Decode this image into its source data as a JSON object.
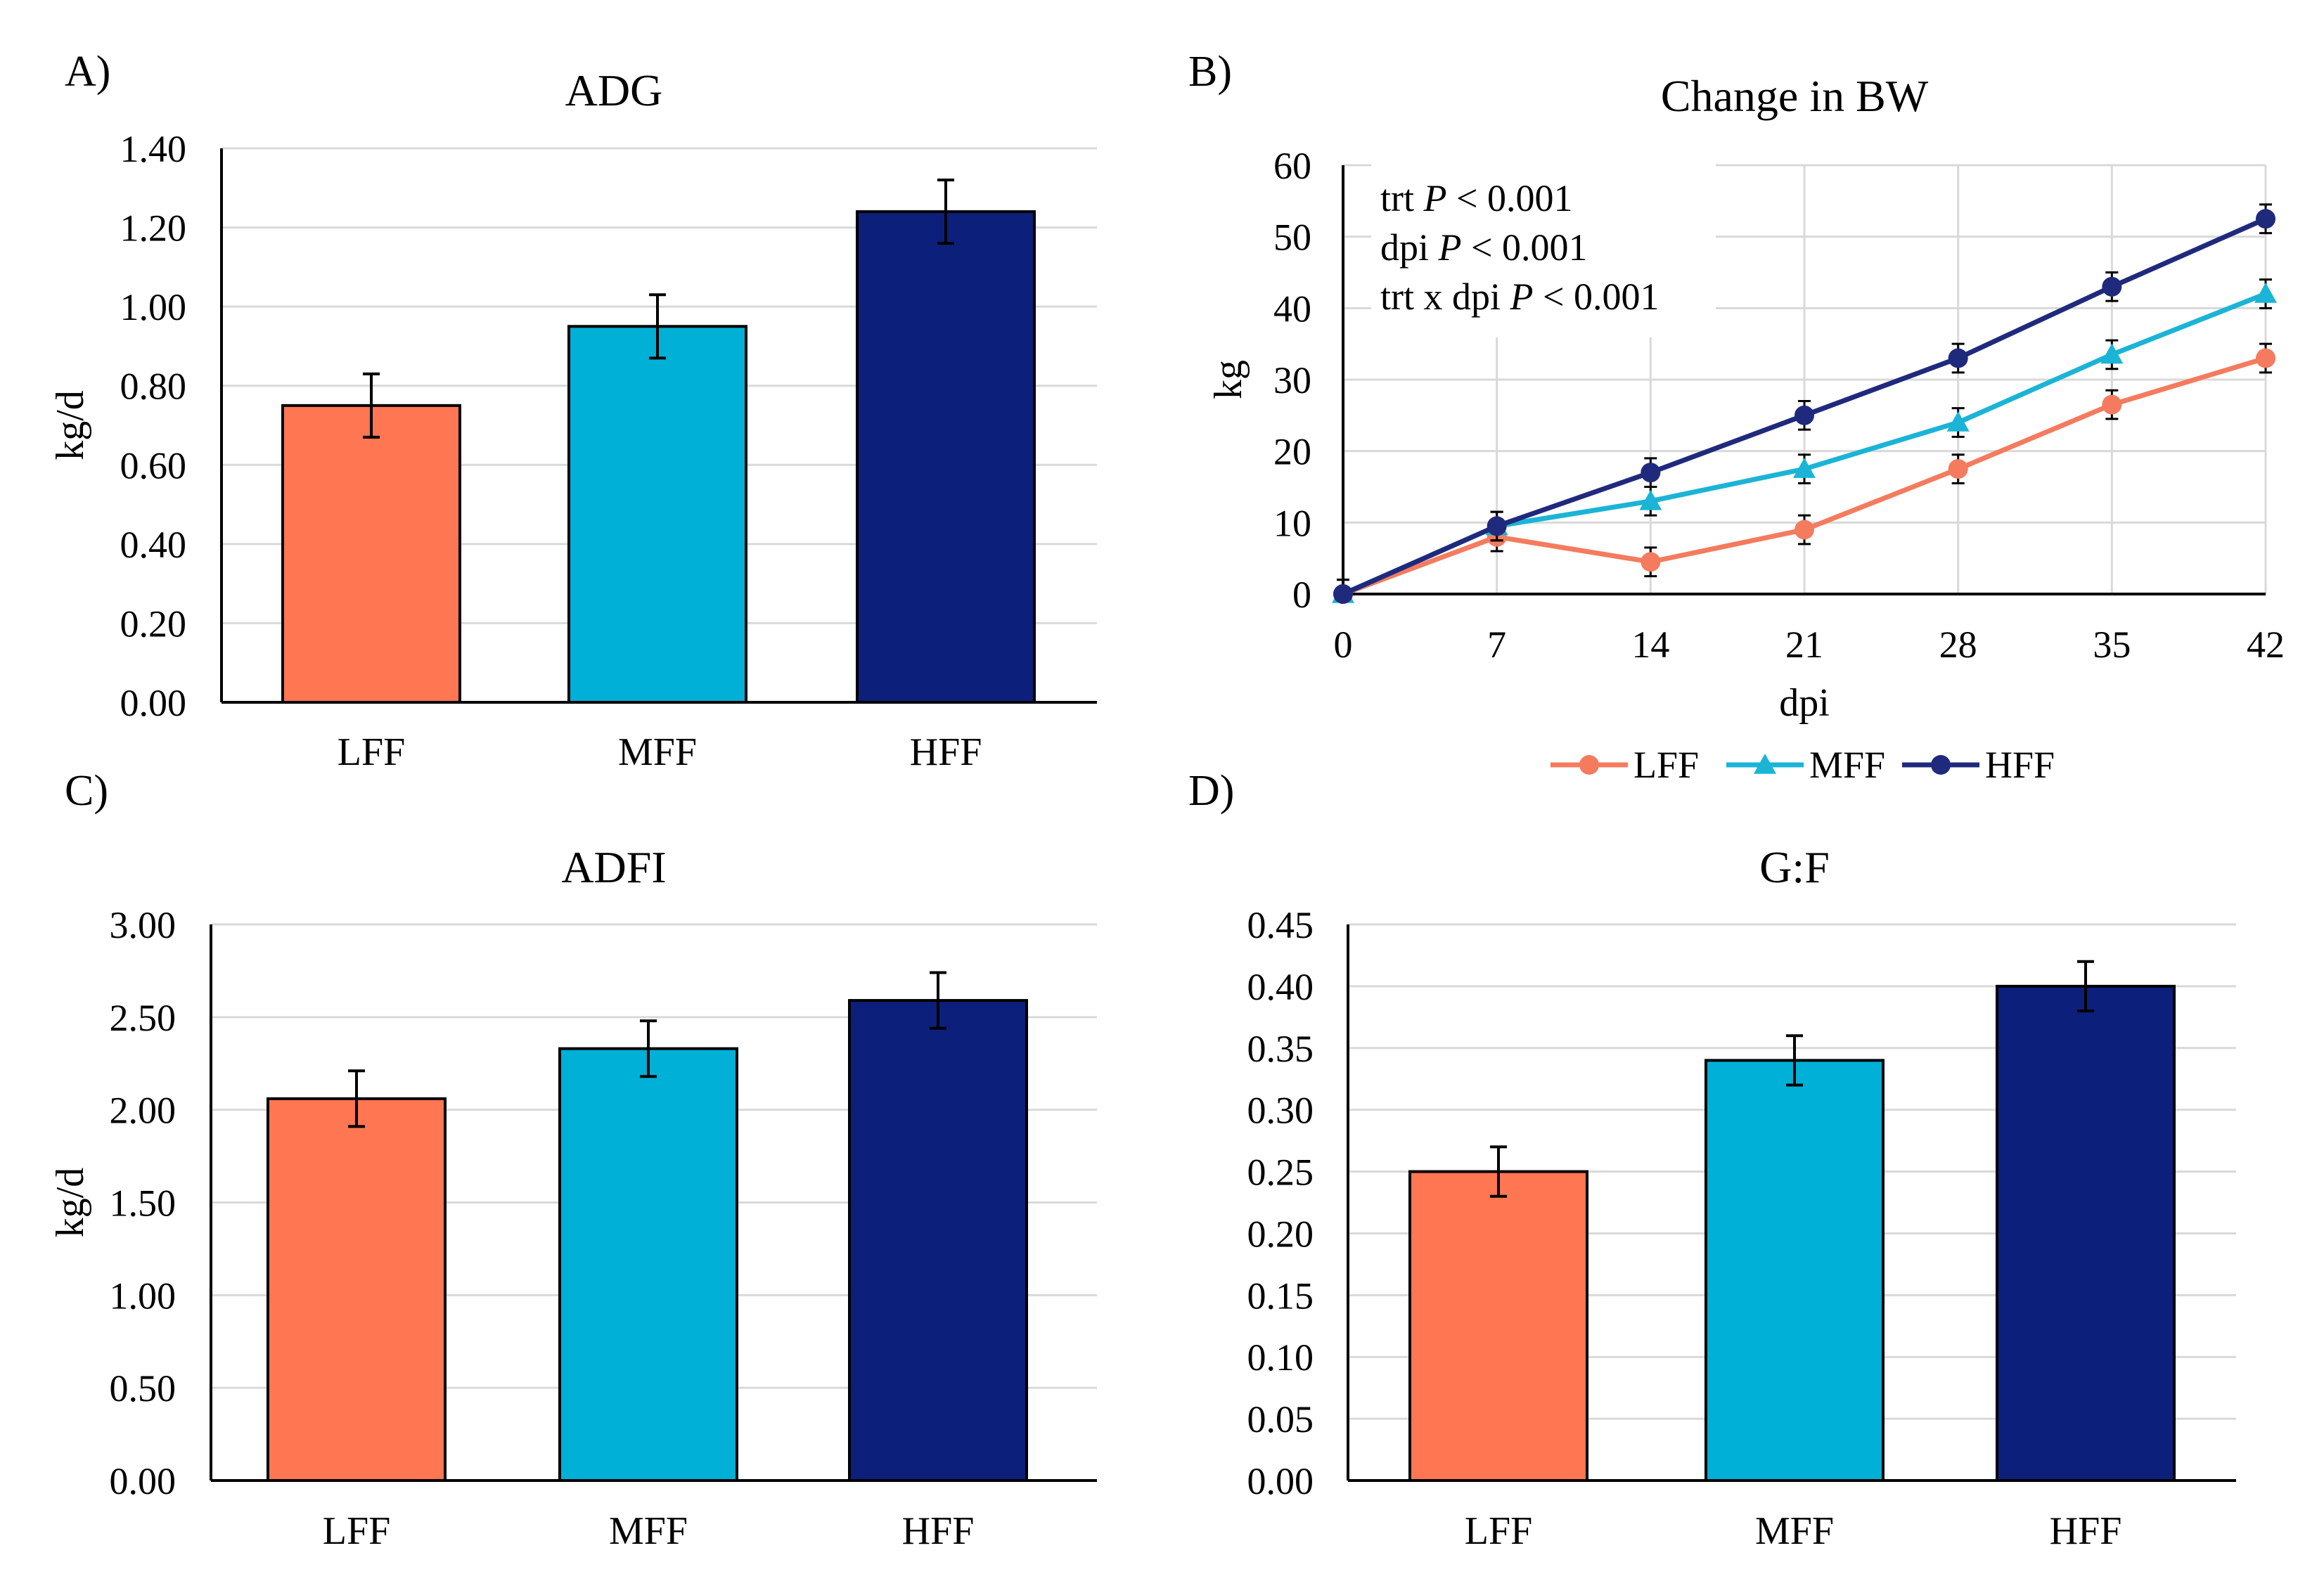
{
  "chart_data": [
    {
      "panel": "A)",
      "type": "bar",
      "title": "ADG",
      "ylabel": "kg/d",
      "xlabel": "",
      "categories": [
        "LFF",
        "MFF",
        "HFF"
      ],
      "values": [
        0.75,
        0.95,
        1.24
      ],
      "errors": [
        0.08,
        0.08,
        0.08
      ],
      "colors": [
        "#FF7652",
        "#00B0D6",
        "#0C1F7A"
      ],
      "ylim": [
        0,
        1.4
      ],
      "yticks": [
        "0.00",
        "0.20",
        "0.40",
        "0.60",
        "0.80",
        "1.00",
        "1.20",
        "1.40"
      ],
      "grid": true
    },
    {
      "panel": "B)",
      "type": "line",
      "title": "Change in BW",
      "ylabel": "kg",
      "xlabel": "dpi",
      "x": [
        0,
        7,
        14,
        21,
        28,
        35,
        42
      ],
      "xticks": [
        "0",
        "7",
        "14",
        "21",
        "28",
        "35",
        "42"
      ],
      "ylim": [
        0,
        60
      ],
      "yticks": [
        "0",
        "10",
        "20",
        "30",
        "40",
        "50",
        "60"
      ],
      "grid": true,
      "legend_position": "bottom",
      "series": [
        {
          "name": "LFF",
          "values": [
            0,
            8,
            4.5,
            9,
            17.5,
            26.5,
            33
          ],
          "errors": [
            2,
            2,
            2,
            2,
            2,
            2,
            2
          ],
          "color": "#F47B5E",
          "marker": "circle"
        },
        {
          "name": "MFF",
          "values": [
            0,
            9.5,
            13,
            17.5,
            24,
            33.5,
            42
          ],
          "errors": [
            2,
            2,
            2,
            2,
            2,
            2,
            2
          ],
          "color": "#1BB4D6",
          "marker": "triangle"
        },
        {
          "name": "HFF",
          "values": [
            0,
            9.5,
            17,
            25,
            33,
            43,
            52.5
          ],
          "errors": [
            2,
            2,
            2,
            2,
            2,
            2,
            2
          ],
          "color": "#1F2A7C",
          "marker": "circle"
        }
      ],
      "annotations": [
        {
          "prefix": "trt ",
          "italic": "P",
          "suffix": " < 0.001"
        },
        {
          "prefix": "dpi ",
          "italic": "P",
          "suffix": " < 0.001"
        },
        {
          "prefix": "trt x dpi ",
          "italic": "P",
          "suffix": " < 0.001"
        }
      ]
    },
    {
      "panel": "C)",
      "type": "bar",
      "title": "ADFI",
      "ylabel": "kg/d",
      "xlabel": "",
      "categories": [
        "LFF",
        "MFF",
        "HFF"
      ],
      "values": [
        2.06,
        2.33,
        2.59
      ],
      "errors": [
        0.15,
        0.15,
        0.15
      ],
      "colors": [
        "#FF7652",
        "#00B0D6",
        "#0C1F7A"
      ],
      "ylim": [
        0,
        3
      ],
      "yticks": [
        "0.00",
        "0.50",
        "1.00",
        "1.50",
        "2.00",
        "2.50",
        "3.00"
      ],
      "grid": true
    },
    {
      "panel": "D)",
      "type": "bar",
      "title": "G:F",
      "ylabel": "",
      "xlabel": "",
      "categories": [
        "LFF",
        "MFF",
        "HFF"
      ],
      "values": [
        0.25,
        0.34,
        0.4
      ],
      "errors": [
        0.02,
        0.02,
        0.02
      ],
      "colors": [
        "#FF7652",
        "#00B0D6",
        "#0C1F7A"
      ],
      "ylim": [
        0,
        0.45
      ],
      "yticks": [
        "0.00",
        "0.05",
        "0.10",
        "0.15",
        "0.20",
        "0.25",
        "0.30",
        "0.35",
        "0.40",
        "0.45"
      ],
      "grid": true
    }
  ]
}
